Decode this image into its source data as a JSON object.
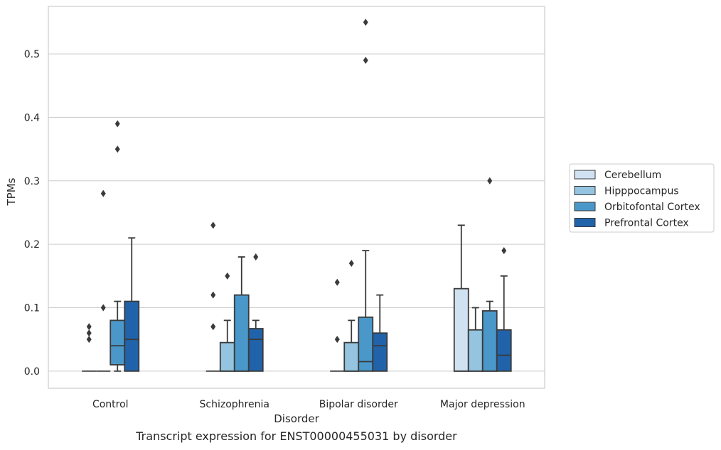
{
  "caption": "Transcript expression for ENST00000455031 by disorder",
  "colors": {
    "background": "#ffffff",
    "grid": "#cccccc",
    "frame": "#cccccc",
    "stroke": "#3a3a3a",
    "series": [
      "#d0e1f2",
      "#94c4df",
      "#4a98c9",
      "#2163aa"
    ]
  },
  "chart_data": {
    "type": "box",
    "xlabel": "Disorder",
    "ylabel": "TPMs",
    "ylim": [
      -0.027,
      0.575
    ],
    "yticks": [
      0.0,
      0.1,
      0.2,
      0.3,
      0.4,
      0.5
    ],
    "ytick_labels": [
      "0.0",
      "0.1",
      "0.2",
      "0.3",
      "0.4",
      "0.5"
    ],
    "grid": "horizontal",
    "legend_position": "right",
    "categories": [
      "Control",
      "Schizophrenia",
      "Bipolar disorder",
      "Major depression"
    ],
    "series": [
      {
        "name": "Cerebellum",
        "boxes": [
          {
            "whisker_low": 0,
            "q1": 0,
            "median": 0,
            "q3": 0,
            "whisker_high": 0,
            "outliers": [
              0.05,
              0.06,
              0.07
            ]
          },
          {
            "whisker_low": 0,
            "q1": 0,
            "median": 0,
            "q3": 0,
            "whisker_high": 0,
            "outliers": [
              0.07,
              0.12,
              0.23
            ]
          },
          {
            "whisker_low": 0,
            "q1": 0,
            "median": 0,
            "q3": 0,
            "whisker_high": 0,
            "outliers": [
              0.05,
              0.14
            ]
          },
          {
            "whisker_low": 0,
            "q1": 0,
            "median": 0,
            "q3": 0.13,
            "whisker_high": 0.23,
            "outliers": []
          }
        ]
      },
      {
        "name": "Hipppocampus",
        "boxes": [
          {
            "whisker_low": 0,
            "q1": 0,
            "median": 0,
            "q3": 0,
            "whisker_high": 0,
            "outliers": [
              0.1,
              0.28
            ]
          },
          {
            "whisker_low": 0,
            "q1": 0,
            "median": 0,
            "q3": 0.045,
            "whisker_high": 0.08,
            "outliers": [
              0.15
            ]
          },
          {
            "whisker_low": 0,
            "q1": 0,
            "median": 0,
            "q3": 0.045,
            "whisker_high": 0.08,
            "outliers": [
              0.17
            ]
          },
          {
            "whisker_low": 0,
            "q1": 0,
            "median": 0,
            "q3": 0.065,
            "whisker_high": 0.1,
            "outliers": []
          }
        ]
      },
      {
        "name": "Orbitofontal Cortex",
        "boxes": [
          {
            "whisker_low": 0,
            "q1": 0.01,
            "median": 0.04,
            "q3": 0.08,
            "whisker_high": 0.11,
            "outliers": [
              0.35,
              0.39
            ]
          },
          {
            "whisker_low": 0,
            "q1": 0,
            "median": 0,
            "q3": 0.12,
            "whisker_high": 0.18,
            "outliers": []
          },
          {
            "whisker_low": 0,
            "q1": 0,
            "median": 0.015,
            "q3": 0.085,
            "whisker_high": 0.19,
            "outliers": [
              0.49,
              0.55
            ]
          },
          {
            "whisker_low": 0,
            "q1": 0,
            "median": 0,
            "q3": 0.095,
            "whisker_high": 0.11,
            "outliers": [
              0.3
            ]
          }
        ]
      },
      {
        "name": "Prefrontal Cortex",
        "boxes": [
          {
            "whisker_low": 0,
            "q1": 0,
            "median": 0.05,
            "q3": 0.11,
            "whisker_high": 0.21,
            "outliers": []
          },
          {
            "whisker_low": 0,
            "q1": 0,
            "median": 0.05,
            "q3": 0.067,
            "whisker_high": 0.08,
            "outliers": [
              0.18
            ]
          },
          {
            "whisker_low": 0,
            "q1": 0,
            "median": 0.04,
            "q3": 0.06,
            "whisker_high": 0.12,
            "outliers": []
          },
          {
            "whisker_low": 0,
            "q1": 0,
            "median": 0.025,
            "q3": 0.065,
            "whisker_high": 0.15,
            "outliers": [
              0.19
            ]
          }
        ]
      }
    ]
  }
}
